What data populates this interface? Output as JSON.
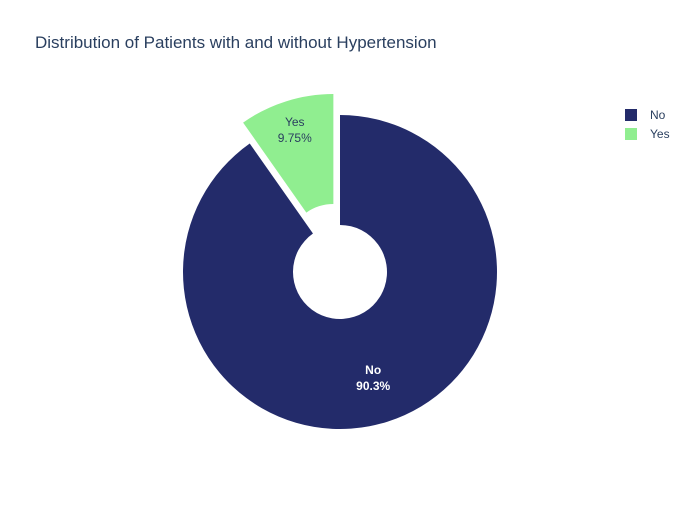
{
  "chart_data": {
    "type": "pie",
    "title": "Distribution of Patients with and without Hypertension",
    "hole": true,
    "legend_position": "top-right",
    "slices": [
      {
        "label": "No",
        "percent": 90.25,
        "percent_text": "90.3%",
        "color": "#232b6a",
        "label_color": "#ffffff",
        "label_weight": "bold",
        "pulled": false
      },
      {
        "label": "Yes",
        "percent": 9.75,
        "percent_text": "9.75%",
        "color": "#90ee90",
        "label_color": "#2a3f5f",
        "label_weight": "normal",
        "pulled": true
      }
    ]
  }
}
